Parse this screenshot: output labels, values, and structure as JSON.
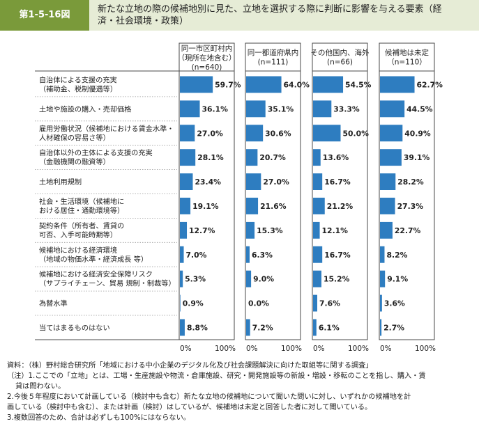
{
  "header": {
    "figure_number": "第1-5-16図",
    "title_line1": "新たな立地の際の候補地別に見た、立地を選択する際に判断に影響を与える要素（経",
    "title_line2": "済・社会環境・政策）"
  },
  "chart_data": {
    "type": "bar",
    "orientation": "horizontal",
    "xlim": [
      0,
      100
    ],
    "tick_labels": [
      "0%",
      "100%"
    ],
    "categories": [
      [
        "自治体による支援の充実",
        "（補助金、税制優遇等）"
      ],
      [
        "土地や施設の購入・売却価格"
      ],
      [
        "雇用労働状況（候補地における賃金水準・",
        "人材確保の容易さ等）"
      ],
      [
        "自治体以外の主体による支援の充実",
        "（金融機関の融資等）"
      ],
      [
        "土地利用規制"
      ],
      [
        "社会・生活環境（候補地に",
        "おける居住・通勤環境等）"
      ],
      [
        "契約条件（所有者、賃貸の",
        "可否、入手可能時期等）"
      ],
      [
        "候補地における経済環境",
        "（地域の物価水準・経済成長 等）"
      ],
      [
        "候補地における経済安全保障リスク",
        "（サプライチェーン、貿易 規制・制裁等）"
      ],
      [
        "為替水準"
      ],
      [
        "当てはまるものはない"
      ]
    ],
    "series": [
      {
        "name": [
          "同一市区町村内",
          "（現所在地含む）",
          "(n=640)"
        ],
        "values": [
          59.7,
          36.1,
          27.0,
          28.1,
          23.4,
          19.1,
          12.7,
          7.0,
          5.3,
          0.9,
          8.8
        ],
        "labels": [
          "59.7%",
          "36.1%",
          "27.0%",
          "28.1%",
          "23.4%",
          "19.1%",
          "12.7%",
          "7.0%",
          "5.3%",
          "0.9%",
          "8.8%"
        ]
      },
      {
        "name": [
          "同一都道府県内",
          "(n=111)"
        ],
        "values": [
          64.0,
          35.1,
          30.6,
          20.7,
          27.0,
          21.6,
          15.3,
          6.3,
          9.0,
          0.0,
          7.2
        ],
        "labels": [
          "64.0%",
          "35.1%",
          "30.6%",
          "20.7%",
          "27.0%",
          "21.6%",
          "15.3%",
          "6.3%",
          "9.0%",
          "0.0%",
          "7.2%"
        ]
      },
      {
        "name": [
          "その他国内、海外",
          "(n=66)"
        ],
        "values": [
          54.5,
          33.3,
          50.0,
          13.6,
          16.7,
          21.2,
          12.1,
          16.7,
          15.2,
          7.6,
          6.1
        ],
        "labels": [
          "54.5%",
          "33.3%",
          "50.0%",
          "13.6%",
          "16.7%",
          "21.2%",
          "12.1%",
          "16.7%",
          "15.2%",
          "7.6%",
          "6.1%"
        ]
      },
      {
        "name": [
          "候補地は未定",
          "（n=110）"
        ],
        "values": [
          62.7,
          44.5,
          40.9,
          39.1,
          28.2,
          27.3,
          22.7,
          8.2,
          9.1,
          3.6,
          2.7
        ],
        "labels": [
          "62.7%",
          "44.5%",
          "40.9%",
          "39.1%",
          "28.2%",
          "27.3%",
          "22.7%",
          "8.2%",
          "9.1%",
          "3.6%",
          "2.7%"
        ]
      }
    ],
    "bar_color": "#2e7dc0",
    "frame_color": "#4a4a4a"
  },
  "notes": {
    "source": "資料：（株）野村総合研究所「地域における中小企業のデジタル化及び社会課題解決に向けた取組等に関する調査」",
    "note1_a": "（注）1.ここでの「立地」とは、工場・生産施設や物流・倉庫施設、研究・開発施設等の新設・増設・移転のことを指し、購入・賃",
    "note1_b": "貸は問わない。",
    "note2_a": "2.今後５年程度において計画している（検討中も含む）新たな立地の候補地について聞いた問いに対し、いずれかの候補地を計",
    "note2_b": "画している（検討中も含む）、または計画（検討）はしているが、候補地は未定と回答した者に対して聞いている。",
    "note3": "3.複数回答のため、合計は必ずしも100%にはならない。"
  }
}
